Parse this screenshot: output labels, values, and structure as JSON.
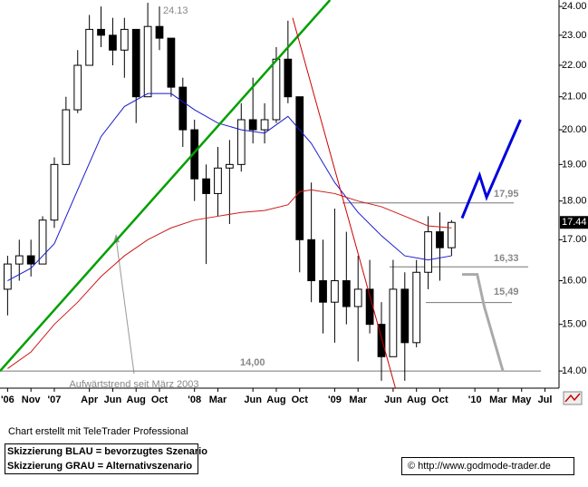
{
  "chart_data": {
    "type": "candlestick",
    "log_scale": true,
    "ylim": [
      13.65,
      24.23
    ],
    "yticks": [
      {
        "value": 24,
        "label": "24.00"
      },
      {
        "value": 23,
        "label": "23.00"
      },
      {
        "value": 22,
        "label": "22.00"
      },
      {
        "value": 21,
        "label": "21.00"
      },
      {
        "value": 20,
        "label": "20.00"
      },
      {
        "value": 19,
        "label": "19.00"
      },
      {
        "value": 18,
        "label": "18.00"
      },
      {
        "value": 17,
        "label": "17.00"
      },
      {
        "value": 16,
        "label": "16.00"
      },
      {
        "value": 15,
        "label": "15.00"
      },
      {
        "value": 14,
        "label": "14.00"
      }
    ],
    "xlim": [
      -4.65,
      43.2
    ],
    "xticks": [
      {
        "value": -4,
        "label": "'06"
      },
      {
        "value": -2,
        "label": "Nov"
      },
      {
        "value": 0,
        "label": "'07"
      },
      {
        "value": 3,
        "label": "Apr"
      },
      {
        "value": 5,
        "label": "Jun"
      },
      {
        "value": 7,
        "label": "Aug"
      },
      {
        "value": 9,
        "label": "Oct"
      },
      {
        "value": 12,
        "label": "'08"
      },
      {
        "value": 14,
        "label": "Mar"
      },
      {
        "value": 17,
        "label": "Jun"
      },
      {
        "value": 19,
        "label": "Aug"
      },
      {
        "value": 21,
        "label": "Oct"
      },
      {
        "value": 24,
        "label": "'09"
      },
      {
        "value": 26,
        "label": "Mar"
      },
      {
        "value": 29,
        "label": "Jun"
      },
      {
        "value": 31,
        "label": "Aug"
      },
      {
        "value": 33,
        "label": "Oct"
      },
      {
        "value": 36,
        "label": "'10"
      },
      {
        "value": 38,
        "label": "Mar"
      },
      {
        "value": 40,
        "label": "May"
      },
      {
        "value": 42,
        "label": "Jul"
      }
    ],
    "candles": {
      "x": [
        -4,
        -3,
        -2,
        -1,
        0,
        1,
        2,
        3,
        4,
        5,
        6,
        7,
        8,
        9,
        10,
        11,
        12,
        13,
        14,
        15,
        16,
        17,
        18,
        19,
        20,
        21,
        22,
        23,
        24,
        25,
        26,
        27,
        28,
        29,
        30,
        31,
        32,
        33,
        34
      ],
      "open": [
        15.8,
        16.4,
        16.6,
        16.4,
        17.5,
        19.0,
        20.6,
        22.0,
        23.2,
        23.0,
        22.5,
        23.2,
        21.0,
        23.3,
        22.9,
        21.3,
        20.0,
        18.6,
        18.2,
        18.9,
        19.0,
        20.3,
        20.0,
        20.3,
        22.2,
        21.0,
        17.0,
        16.0,
        15.5,
        16.0,
        15.4,
        15.8,
        15.0,
        14.3,
        15.8,
        14.6,
        16.2,
        17.2,
        16.8
      ],
      "high": [
        16.6,
        17.0,
        17.0,
        17.6,
        19.2,
        21.0,
        22.5,
        23.7,
        24.0,
        23.6,
        23.6,
        23.2,
        24.13,
        24.0,
        22.8,
        21.6,
        20.3,
        19.0,
        19.5,
        19.7,
        20.8,
        21.6,
        20.8,
        22.6,
        23.5,
        21.0,
        18.5,
        17.0,
        17.8,
        17.2,
        16.6,
        16.5,
        15.5,
        16.5,
        16.2,
        16.5,
        17.6,
        17.7,
        17.5
      ],
      "low": [
        15.2,
        16.0,
        16.1,
        16.4,
        17.3,
        19.0,
        20.5,
        22.0,
        22.6,
        22.0,
        21.6,
        20.2,
        21.0,
        22.5,
        21.0,
        19.5,
        18.0,
        16.4,
        17.6,
        17.4,
        18.8,
        19.6,
        19.6,
        20.2,
        20.8,
        16.2,
        15.5,
        14.8,
        14.6,
        15.0,
        14.2,
        14.8,
        13.8,
        14.3,
        13.8,
        14.5,
        15.8,
        16.0,
        16.6
      ],
      "close": [
        16.4,
        16.6,
        16.4,
        17.5,
        19.0,
        20.6,
        22.0,
        23.2,
        23.0,
        22.5,
        23.2,
        21.0,
        23.3,
        22.9,
        21.3,
        20.0,
        18.6,
        18.2,
        18.9,
        19.0,
        20.3,
        20.0,
        20.3,
        22.2,
        21.0,
        17.0,
        16.0,
        15.5,
        16.0,
        15.4,
        15.8,
        15.0,
        14.3,
        15.8,
        14.6,
        16.2,
        17.2,
        16.8,
        17.44
      ]
    },
    "series": [
      {
        "color": "#1a1acc",
        "x": [
          -4,
          -2,
          0,
          2,
          4,
          6,
          8,
          10,
          12,
          14,
          16,
          18,
          20,
          22,
          24,
          26,
          28,
          30,
          32,
          34
        ],
        "values": [
          16.0,
          16.3,
          16.9,
          18.3,
          19.8,
          20.7,
          21.1,
          21.1,
          20.6,
          20.2,
          20.0,
          19.9,
          20.4,
          19.6,
          18.5,
          17.7,
          17.1,
          16.6,
          16.5,
          16.6
        ]
      },
      {
        "color": "#cc1a1a",
        "x": [
          -4,
          -2,
          0,
          2,
          4,
          6,
          8,
          10,
          12,
          14,
          16,
          18,
          20,
          21,
          22,
          24,
          26,
          28,
          30,
          32,
          34
        ],
        "values": [
          14.05,
          14.4,
          15.0,
          15.5,
          16.1,
          16.6,
          17.0,
          17.3,
          17.5,
          17.6,
          17.7,
          17.75,
          17.9,
          18.25,
          18.3,
          18.2,
          18.0,
          17.85,
          17.6,
          17.35,
          17.3
        ]
      },
      {
        "color": "#00a000",
        "x": [
          -4.65,
          23.6
        ],
        "values": [
          14.0,
          24.23
        ]
      },
      {
        "color": "#cc0000",
        "x": [
          20.4,
          29.2
        ],
        "values": [
          23.6,
          13.65
        ]
      },
      {
        "color": "#0000dd",
        "x": [
          34.9,
          36.4,
          37.0,
          39.9
        ],
        "values": [
          17.55,
          18.7,
          18.1,
          20.3
        ]
      },
      {
        "color": "#aaaaaa",
        "x": [
          34.9,
          36.2,
          36.8,
          38.4
        ],
        "values": [
          16.15,
          16.15,
          15.4,
          14.0
        ]
      }
    ],
    "levels": [
      {
        "value": 17.95,
        "label": "17,95"
      },
      {
        "value": 16.33,
        "label": "16,33"
      },
      {
        "value": 15.49,
        "label": "15,49"
      },
      {
        "value": 14.0,
        "label": "14,00"
      }
    ],
    "peak_label": 24.13,
    "last_price": 17.44,
    "annotation": "Aufwärtstrend seit März 2003",
    "credit": "Chart erstellt mit TeleTrader Professional",
    "legend_lines": [
      "Skizzierung BLAU = bevorzugtes Szenario",
      "Skizzierung GRAU = Alternativszenario"
    ],
    "source": "© http://www.godmode-trader.de"
  }
}
